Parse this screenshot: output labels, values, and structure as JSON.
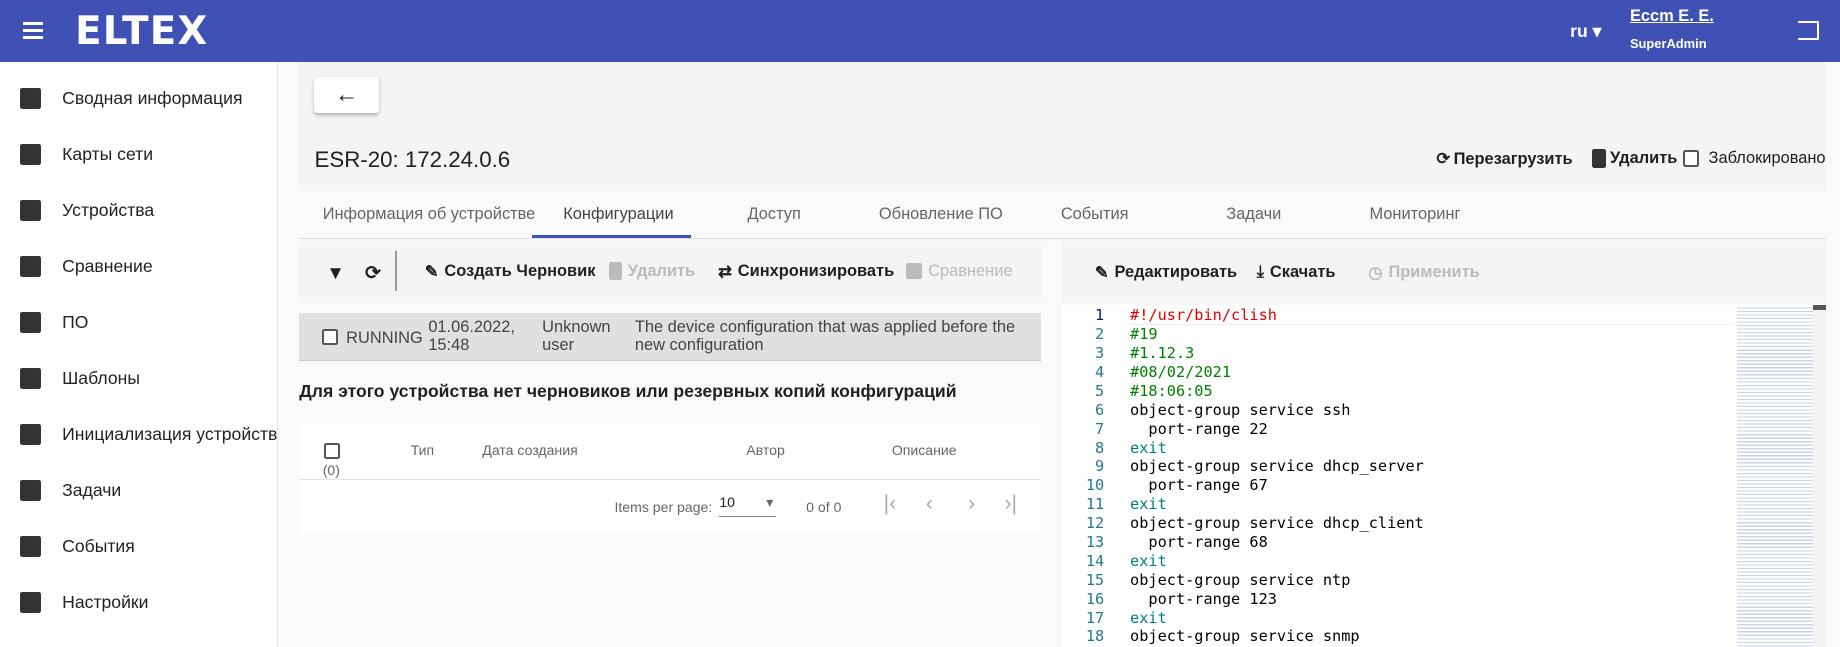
{
  "header": {
    "logo": "ELTEX",
    "lang": "ru",
    "user": "Еccm Е. Е.",
    "role": "SuperAdmin",
    "colors": {
      "primary": "#3f51b5"
    }
  },
  "sidebar": {
    "items": [
      {
        "label": "Сводная информация",
        "icon": "dashboard-icon"
      },
      {
        "label": "Карты сети",
        "icon": "map-icon"
      },
      {
        "label": "Устройства",
        "icon": "devices-icon"
      },
      {
        "label": "Сравнение",
        "icon": "compare-icon"
      },
      {
        "label": "ПО",
        "icon": "software-icon"
      },
      {
        "label": "Шаблоны",
        "icon": "wrench-icon"
      },
      {
        "label": "Инициализация устройств",
        "icon": "init-icon"
      },
      {
        "label": "Задачи",
        "icon": "tasks-icon"
      },
      {
        "label": "События",
        "icon": "events-icon"
      },
      {
        "label": "Настройки",
        "icon": "settings-icon"
      }
    ]
  },
  "page": {
    "back": "←",
    "title": "ESR-20: 172.24.0.6",
    "reboot": "Перезагрузить",
    "delete": "Удалить",
    "locked": "Заблокировано"
  },
  "tabs": [
    "Информация об устройстве",
    "Конфигурации",
    "Доступ",
    "Обновление ПО",
    "События",
    "Задачи",
    "Мониторинг"
  ],
  "left_toolbar": {
    "create_draft": "Создать Черновик",
    "delete": "Удалить",
    "sync": "Синхронизировать",
    "compare": "Сравнение"
  },
  "running": {
    "status": "RUNNING",
    "date": "01.06.2022, 15:48",
    "author": "Unknown user",
    "description": "The device configuration that was applied before the new configuration"
  },
  "no_data": "Для этого устройства нет черновиков или резервных копий конфигураций",
  "table": {
    "columns": [
      "Тип",
      "Дата создания",
      "Автор",
      "Описание"
    ],
    "selected_count": "(0)",
    "items_per_page_label": "Items per page:",
    "items_per_page": "10",
    "range": "0 of 0"
  },
  "right_toolbar": {
    "edit": "Редактировать",
    "download": "Скачать",
    "apply": "Применить"
  },
  "code": [
    {
      "n": "1",
      "t": "#!/usr/bin/clish",
      "c": "#e00000"
    },
    {
      "n": "2",
      "t": "#19",
      "c": "#008000"
    },
    {
      "n": "3",
      "t": "#1.12.3",
      "c": "#008000"
    },
    {
      "n": "4",
      "t": "#08/02/2021",
      "c": "#008000"
    },
    {
      "n": "5",
      "t": "#18:06:05",
      "c": "#008000"
    },
    {
      "n": "6",
      "t": "object-group service ssh",
      "c": "#000"
    },
    {
      "n": "7",
      "t": "  port-range 22",
      "c": "#000"
    },
    {
      "n": "8",
      "t": "exit",
      "c": "#008080"
    },
    {
      "n": "9",
      "t": "object-group service dhcp_server",
      "c": "#000"
    },
    {
      "n": "10",
      "t": "  port-range 67",
      "c": "#000"
    },
    {
      "n": "11",
      "t": "exit",
      "c": "#008080"
    },
    {
      "n": "12",
      "t": "object-group service dhcp_client",
      "c": "#000"
    },
    {
      "n": "13",
      "t": "  port-range 68",
      "c": "#000"
    },
    {
      "n": "14",
      "t": "exit",
      "c": "#008080"
    },
    {
      "n": "15",
      "t": "object-group service ntp",
      "c": "#000"
    },
    {
      "n": "16",
      "t": "  port-range 123",
      "c": "#000"
    },
    {
      "n": "17",
      "t": "exit",
      "c": "#008080"
    },
    {
      "n": "18",
      "t": "object-group service snmp",
      "c": "#000"
    }
  ]
}
